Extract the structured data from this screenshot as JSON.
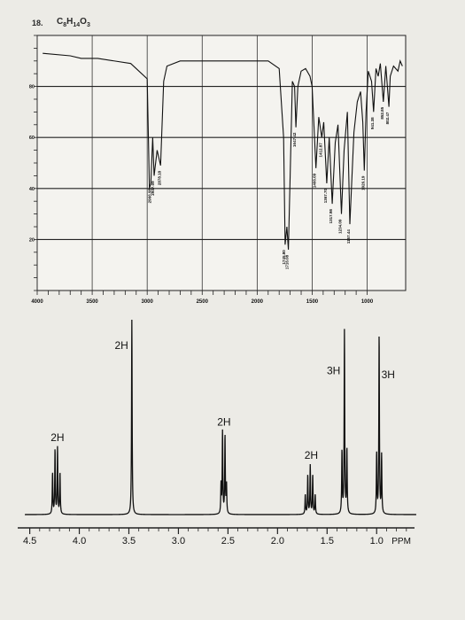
{
  "header": {
    "problem_label": "18.",
    "formula": "C8H14O3"
  },
  "chart_data": [
    {
      "type": "line",
      "title": "",
      "xlabel": "",
      "ylabel": "",
      "x_ticks": [
        "4000",
        "3500",
        "3000",
        "2500",
        "2000",
        "1500",
        "1000"
      ],
      "y_ticks": [
        "80",
        "60",
        "40",
        "20"
      ],
      "xlim": [
        4000,
        650
      ],
      "ylim": [
        0,
        100
      ],
      "grid": true,
      "peak_labels": [
        "2966.98",
        "2937.09",
        "2878.18",
        "1745.80",
        "1716.08",
        "1647.42",
        "1466.09",
        "1412.87",
        "1367.70",
        "1317.98",
        "1234.09",
        "1157.44",
        "1026.19",
        "941.38",
        "852.85",
        "802.47"
      ],
      "series": [
        {
          "x": [
            3950,
            3700,
            3600,
            3450,
            3150,
            3000,
            2980,
            2966.98,
            2950,
            2937.09,
            2910,
            2878.18,
            2850,
            2820,
            2700,
            2400,
            2100,
            1900,
            1800,
            1760,
            1745.8,
            1730,
            1716.08,
            1700,
            1680,
            1660,
            1647.42,
            1630,
            1600,
            1560,
            1520,
            1500,
            1466.09,
            1440,
            1412.87,
            1395,
            1367.7,
            1345,
            1317.98,
            1290,
            1265,
            1234.09,
            1210,
            1180,
            1157.44,
            1120,
            1090,
            1060,
            1040,
            1026.19,
            1010,
            990,
            960,
            941.38,
            920,
            900,
            880,
            852.85,
            830,
            802.47,
            790,
            760,
            720,
            700,
            680
          ],
          "y": [
            93,
            92,
            91,
            91,
            89,
            83,
            40,
            42,
            60,
            45,
            55,
            49,
            82,
            88,
            90,
            90,
            90,
            90,
            87,
            60,
            18,
            25,
            16,
            45,
            82,
            80,
            64,
            80,
            86,
            87,
            84,
            80,
            48,
            68,
            60,
            66,
            42,
            60,
            34,
            58,
            65,
            30,
            55,
            70,
            26,
            62,
            74,
            78,
            66,
            47,
            70,
            86,
            82,
            70,
            87,
            84,
            89,
            74,
            88,
            72,
            84,
            88,
            86,
            90,
            88
          ]
        }
      ]
    },
    {
      "type": "line",
      "title": "",
      "xlabel": "PPM",
      "ylabel": "",
      "x_ticks": [
        "4.5",
        "4.0",
        "3.5",
        "3.0",
        "2.5",
        "2.0",
        "1.5",
        "1.0"
      ],
      "xlim": [
        4.55,
        0.6
      ],
      "grid": false,
      "integrations": [
        {
          "shift": 4.22,
          "label": "2H"
        },
        {
          "shift": 3.47,
          "label": "2H"
        },
        {
          "shift": 2.54,
          "label": "2H"
        },
        {
          "shift": 1.66,
          "label": "2H"
        },
        {
          "shift": 1.33,
          "label": "3H"
        },
        {
          "shift": 0.97,
          "label": "3H"
        }
      ],
      "peaks": [
        {
          "shift": 4.27,
          "height": 0.21
        },
        {
          "shift": 4.245,
          "height": 0.33
        },
        {
          "shift": 4.22,
          "height": 0.34
        },
        {
          "shift": 4.195,
          "height": 0.21
        },
        {
          "shift": 3.47,
          "height": 1.0
        },
        {
          "shift": 2.57,
          "height": 0.15
        },
        {
          "shift": 2.555,
          "height": 0.42
        },
        {
          "shift": 2.53,
          "height": 0.4
        },
        {
          "shift": 2.515,
          "height": 0.15
        },
        {
          "shift": 1.72,
          "height": 0.1
        },
        {
          "shift": 1.695,
          "height": 0.2
        },
        {
          "shift": 1.67,
          "height": 0.25
        },
        {
          "shift": 1.645,
          "height": 0.2
        },
        {
          "shift": 1.62,
          "height": 0.1
        },
        {
          "shift": 1.35,
          "height": 0.32
        },
        {
          "shift": 1.325,
          "height": 0.94
        },
        {
          "shift": 1.3,
          "height": 0.33
        },
        {
          "shift": 1.0,
          "height": 0.31
        },
        {
          "shift": 0.975,
          "height": 0.92
        },
        {
          "shift": 0.95,
          "height": 0.3
        }
      ]
    }
  ]
}
